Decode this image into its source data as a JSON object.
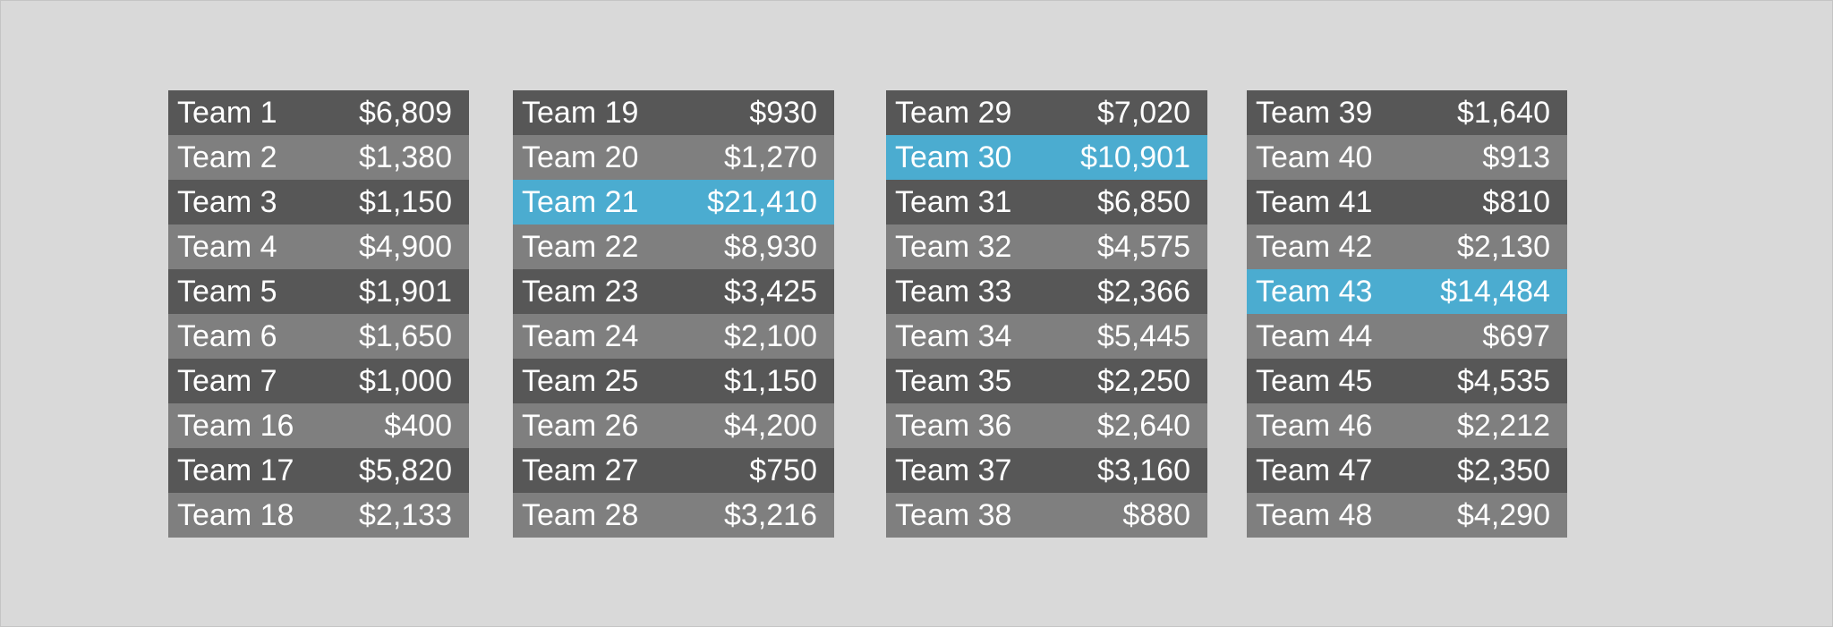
{
  "colors": {
    "background": "#d9d9d9",
    "row_dark": "#575757",
    "row_light": "#7f7f7f",
    "highlight": "#4bacd0",
    "text": "#ffffff"
  },
  "tables": [
    {
      "rows": [
        {
          "team": "Team 1",
          "amount": "$6,809",
          "highlighted": false
        },
        {
          "team": "Team 2",
          "amount": "$1,380",
          "highlighted": false
        },
        {
          "team": "Team 3",
          "amount": "$1,150",
          "highlighted": false
        },
        {
          "team": "Team 4",
          "amount": "$4,900",
          "highlighted": false
        },
        {
          "team": "Team 5",
          "amount": "$1,901",
          "highlighted": false
        },
        {
          "team": "Team 6",
          "amount": "$1,650",
          "highlighted": false
        },
        {
          "team": "Team 7",
          "amount": "$1,000",
          "highlighted": false
        },
        {
          "team": "Team 16",
          "amount": "$400",
          "highlighted": false
        },
        {
          "team": "Team 17",
          "amount": "$5,820",
          "highlighted": false
        },
        {
          "team": "Team 18",
          "amount": "$2,133",
          "highlighted": false
        }
      ]
    },
    {
      "rows": [
        {
          "team": "Team 19",
          "amount": "$930",
          "highlighted": false
        },
        {
          "team": "Team 20",
          "amount": "$1,270",
          "highlighted": false
        },
        {
          "team": "Team 21",
          "amount": "$21,410",
          "highlighted": true
        },
        {
          "team": "Team 22",
          "amount": "$8,930",
          "highlighted": false
        },
        {
          "team": "Team 23",
          "amount": "$3,425",
          "highlighted": false
        },
        {
          "team": "Team 24",
          "amount": "$2,100",
          "highlighted": false
        },
        {
          "team": "Team 25",
          "amount": "$1,150",
          "highlighted": false
        },
        {
          "team": "Team 26",
          "amount": "$4,200",
          "highlighted": false
        },
        {
          "team": "Team 27",
          "amount": "$750",
          "highlighted": false
        },
        {
          "team": "Team 28",
          "amount": "$3,216",
          "highlighted": false
        }
      ]
    },
    {
      "rows": [
        {
          "team": "Team 29",
          "amount": "$7,020",
          "highlighted": false
        },
        {
          "team": "Team 30",
          "amount": "$10,901",
          "highlighted": true
        },
        {
          "team": "Team 31",
          "amount": "$6,850",
          "highlighted": false
        },
        {
          "team": "Team 32",
          "amount": "$4,575",
          "highlighted": false
        },
        {
          "team": "Team 33",
          "amount": "$2,366",
          "highlighted": false
        },
        {
          "team": "Team 34",
          "amount": "$5,445",
          "highlighted": false
        },
        {
          "team": "Team 35",
          "amount": "$2,250",
          "highlighted": false
        },
        {
          "team": "Team 36",
          "amount": "$2,640",
          "highlighted": false
        },
        {
          "team": "Team 37",
          "amount": "$3,160",
          "highlighted": false
        },
        {
          "team": "Team 38",
          "amount": "$880",
          "highlighted": false
        }
      ]
    },
    {
      "rows": [
        {
          "team": "Team 39",
          "amount": "$1,640",
          "highlighted": false
        },
        {
          "team": "Team 40",
          "amount": "$913",
          "highlighted": false
        },
        {
          "team": "Team 41",
          "amount": "$810",
          "highlighted": false
        },
        {
          "team": "Team 42",
          "amount": "$2,130",
          "highlighted": false
        },
        {
          "team": "Team 43",
          "amount": "$14,484",
          "highlighted": true
        },
        {
          "team": "Team 44",
          "amount": "$697",
          "highlighted": false
        },
        {
          "team": "Team 45",
          "amount": "$4,535",
          "highlighted": false
        },
        {
          "team": "Team 46",
          "amount": "$2,212",
          "highlighted": false
        },
        {
          "team": "Team 47",
          "amount": "$2,350",
          "highlighted": false
        },
        {
          "team": "Team 48",
          "amount": "$4,290",
          "highlighted": false
        }
      ]
    }
  ]
}
